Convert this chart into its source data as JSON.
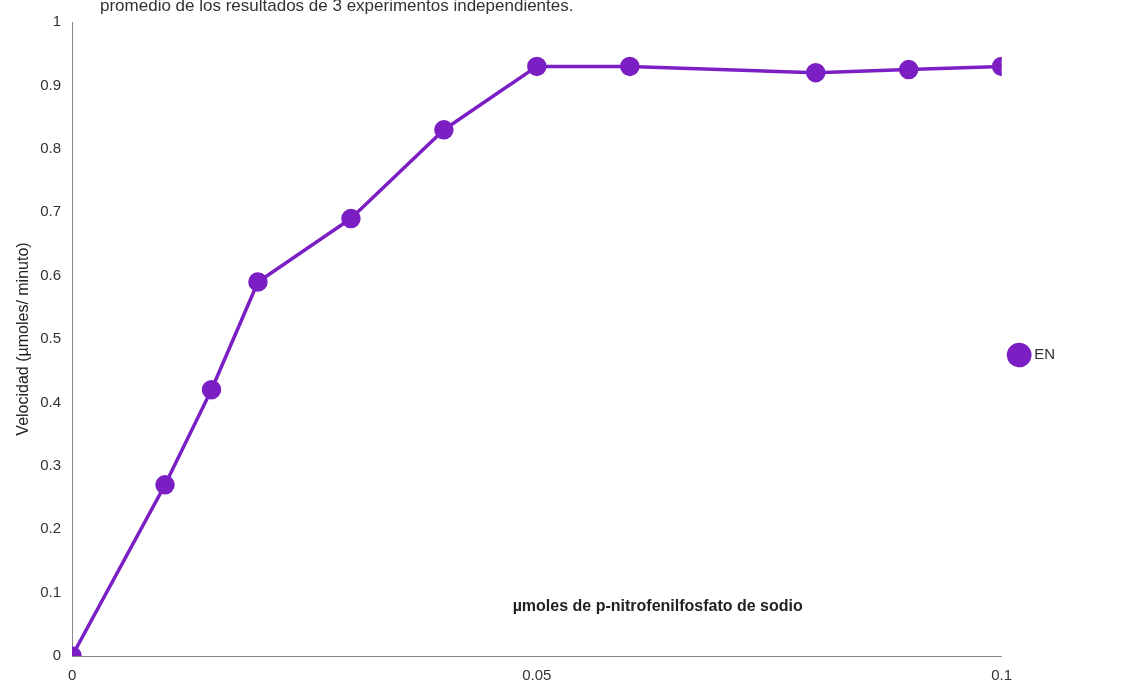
{
  "chart_data": {
    "type": "line",
    "annotations": [
      "promedio de los resultados de 3 experimentos independientes."
    ],
    "xlabel": "µmoles de p-nitrofenilfosfato de sodio",
    "ylabel": "Velocidad (µmoles/ minuto)",
    "x": [
      0,
      0.01,
      0.015,
      0.02,
      0.03,
      0.04,
      0.05,
      0.06,
      0.08,
      0.09,
      0.1
    ],
    "series": [
      {
        "name": "EN",
        "color": "#7b1fc4",
        "values": [
          0,
          0.27,
          0.42,
          0.59,
          0.69,
          0.83,
          0.93,
          0.93,
          0.92,
          0.925,
          0.93
        ]
      }
    ],
    "xlim": [
      0,
      0.1
    ],
    "xticks": [
      0,
      0.05,
      0.1
    ],
    "ylim": [
      0,
      1
    ],
    "yticks": [
      0,
      0.1,
      0.2,
      0.3,
      0.4,
      0.5,
      0.6,
      0.7,
      0.8,
      0.9,
      1
    ],
    "grid": false,
    "legend": "right",
    "marker": "circle",
    "line_style": "solid"
  }
}
